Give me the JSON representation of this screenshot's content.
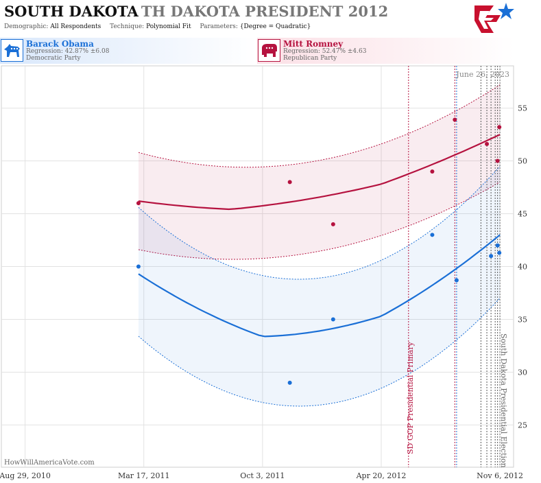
{
  "header": {
    "state": "SOUTH DAKOTA",
    "race": "TH DAKOTA PRESIDENT 2012",
    "meta": {
      "demographic_label": "Demographic:",
      "demographic_value": "All Respondents",
      "technique_label": "Technique:",
      "technique_value": "Polynomial Fit",
      "parameters_label": "Parameters:",
      "parameters_value": "{Degree = Quadratic}"
    }
  },
  "candidates": {
    "dem": {
      "name": "Barack Obama",
      "regression": "Regression: 42.87% ±6.08",
      "party": "Democratic Party",
      "color": "#1a6fd6",
      "icon": "donkey-icon"
    },
    "rep": {
      "name": "Mitt Romney",
      "regression": "Regression: 52.47% ±4.63",
      "party": "Republican Party",
      "color": "#b5123f",
      "icon": "elephant-icon"
    }
  },
  "watermark": "HowWillAmericaVote.com",
  "chart_data": {
    "type": "scatter",
    "x_axis": {
      "type": "date",
      "range": [
        "2010-07-20",
        "2012-11-29"
      ],
      "ticks": [
        {
          "date": "2010-08-29",
          "label": "Aug 29, 2010"
        },
        {
          "date": "2011-03-17",
          "label": "Mar 17, 2011"
        },
        {
          "date": "2011-10-03",
          "label": "Oct 3, 2011"
        },
        {
          "date": "2012-04-20",
          "label": "Apr 20, 2012"
        },
        {
          "date": "2012-11-06",
          "label": "Nov 6, 2012"
        }
      ],
      "grid": true
    },
    "y_axis": {
      "range": [
        21,
        59
      ],
      "ticks": [
        25,
        30,
        35,
        40,
        45,
        50,
        55
      ],
      "position": "right",
      "grid": true
    },
    "date_note": "June 26, 2023",
    "events": [
      {
        "date": "2012-06-05",
        "label": "SD GOP Presidential Primary",
        "color": "#b5123f"
      },
      {
        "date": "2012-11-06",
        "label": "South Dakota Presidential Election",
        "color": "#666666"
      }
    ],
    "poll_lines": [
      {
        "date": "2012-08-22",
        "color": "#b5123f"
      },
      {
        "date": "2012-08-25",
        "color": "#1a6fd6"
      },
      {
        "date": "2012-10-05",
        "color": "#555555"
      },
      {
        "date": "2012-10-15",
        "color": "#555555"
      },
      {
        "date": "2012-10-22",
        "color": "#555555"
      },
      {
        "date": "2012-10-29",
        "color": "#555555"
      },
      {
        "date": "2012-11-02",
        "color": "#555555"
      }
    ],
    "fit_start": "2011-03-08",
    "fit_end": "2012-11-06",
    "series": [
      {
        "name": "Barack Obama",
        "color": "#1a6fd6",
        "points": [
          {
            "date": "2011-03-08",
            "value": 40.0
          },
          {
            "date": "2011-11-18",
            "value": 29.0
          },
          {
            "date": "2012-01-30",
            "value": 35.0
          },
          {
            "date": "2012-07-15",
            "value": 43.0
          },
          {
            "date": "2012-08-25",
            "value": 38.7
          },
          {
            "date": "2012-10-22",
            "value": 41.0
          },
          {
            "date": "2012-11-02",
            "value": 42.0
          },
          {
            "date": "2012-11-05",
            "value": 41.3
          }
        ],
        "fit": [
          {
            "date": "2011-03-08",
            "value": 39.3
          },
          {
            "date": "2011-10-03",
            "value": 32.8
          },
          {
            "date": "2012-04-20",
            "value": 35.3
          },
          {
            "date": "2012-11-06",
            "value": 43.0
          }
        ],
        "band_upper": [
          {
            "date": "2011-03-08",
            "value": 45.6
          },
          {
            "date": "2011-10-31",
            "value": 38.9
          },
          {
            "date": "2012-11-06",
            "value": 49.5
          }
        ],
        "band_lower": [
          {
            "date": "2011-03-08",
            "value": 33.4
          },
          {
            "date": "2011-11-21",
            "value": 26.8
          },
          {
            "date": "2012-11-06",
            "value": 37.0
          }
        ]
      },
      {
        "name": "Mitt Romney",
        "color": "#b5123f",
        "points": [
          {
            "date": "2011-03-08",
            "value": 46.0
          },
          {
            "date": "2011-11-18",
            "value": 48.0
          },
          {
            "date": "2012-01-30",
            "value": 44.0
          },
          {
            "date": "2012-07-15",
            "value": 49.0
          },
          {
            "date": "2012-08-22",
            "value": 53.9
          },
          {
            "date": "2012-10-15",
            "value": 51.6
          },
          {
            "date": "2012-11-02",
            "value": 50.0
          },
          {
            "date": "2012-11-05",
            "value": 53.2
          }
        ],
        "fit": [
          {
            "date": "2011-03-08",
            "value": 46.2
          },
          {
            "date": "2011-08-10",
            "value": 45.3
          },
          {
            "date": "2012-04-20",
            "value": 47.8
          },
          {
            "date": "2012-11-06",
            "value": 52.5
          }
        ],
        "band_upper": [
          {
            "date": "2011-03-08",
            "value": 50.8
          },
          {
            "date": "2011-09-05",
            "value": 49.4
          },
          {
            "date": "2012-11-06",
            "value": 57.2
          }
        ],
        "band_lower": [
          {
            "date": "2011-03-08",
            "value": 41.6
          },
          {
            "date": "2011-09-05",
            "value": 40.7
          },
          {
            "date": "2012-11-06",
            "value": 48.0
          }
        ]
      }
    ]
  }
}
